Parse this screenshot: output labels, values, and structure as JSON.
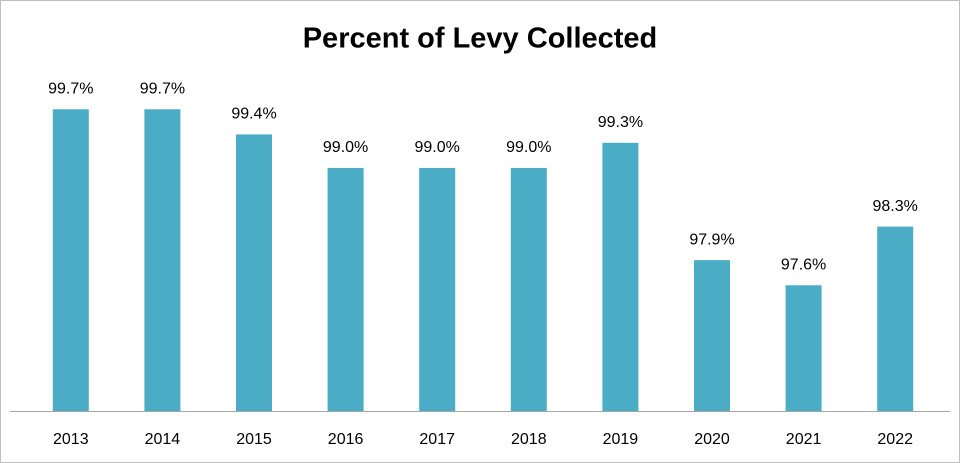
{
  "chart_data": {
    "type": "bar",
    "title": "Percent of Levy Collected",
    "categories": [
      "2013",
      "2014",
      "2015",
      "2016",
      "2017",
      "2018",
      "2019",
      "2020",
      "2021",
      "2022"
    ],
    "values": [
      99.7,
      99.7,
      99.4,
      99.0,
      99.0,
      99.0,
      99.3,
      97.9,
      97.6,
      98.3
    ],
    "value_labels": [
      "99.7%",
      "99.7%",
      "99.4%",
      "99.0%",
      "99.0%",
      "99.0%",
      "99.3%",
      "97.9%",
      "97.6%",
      "98.3%"
    ],
    "color": "#4bacc6",
    "ylim": [
      96.1,
      100.3
    ]
  }
}
